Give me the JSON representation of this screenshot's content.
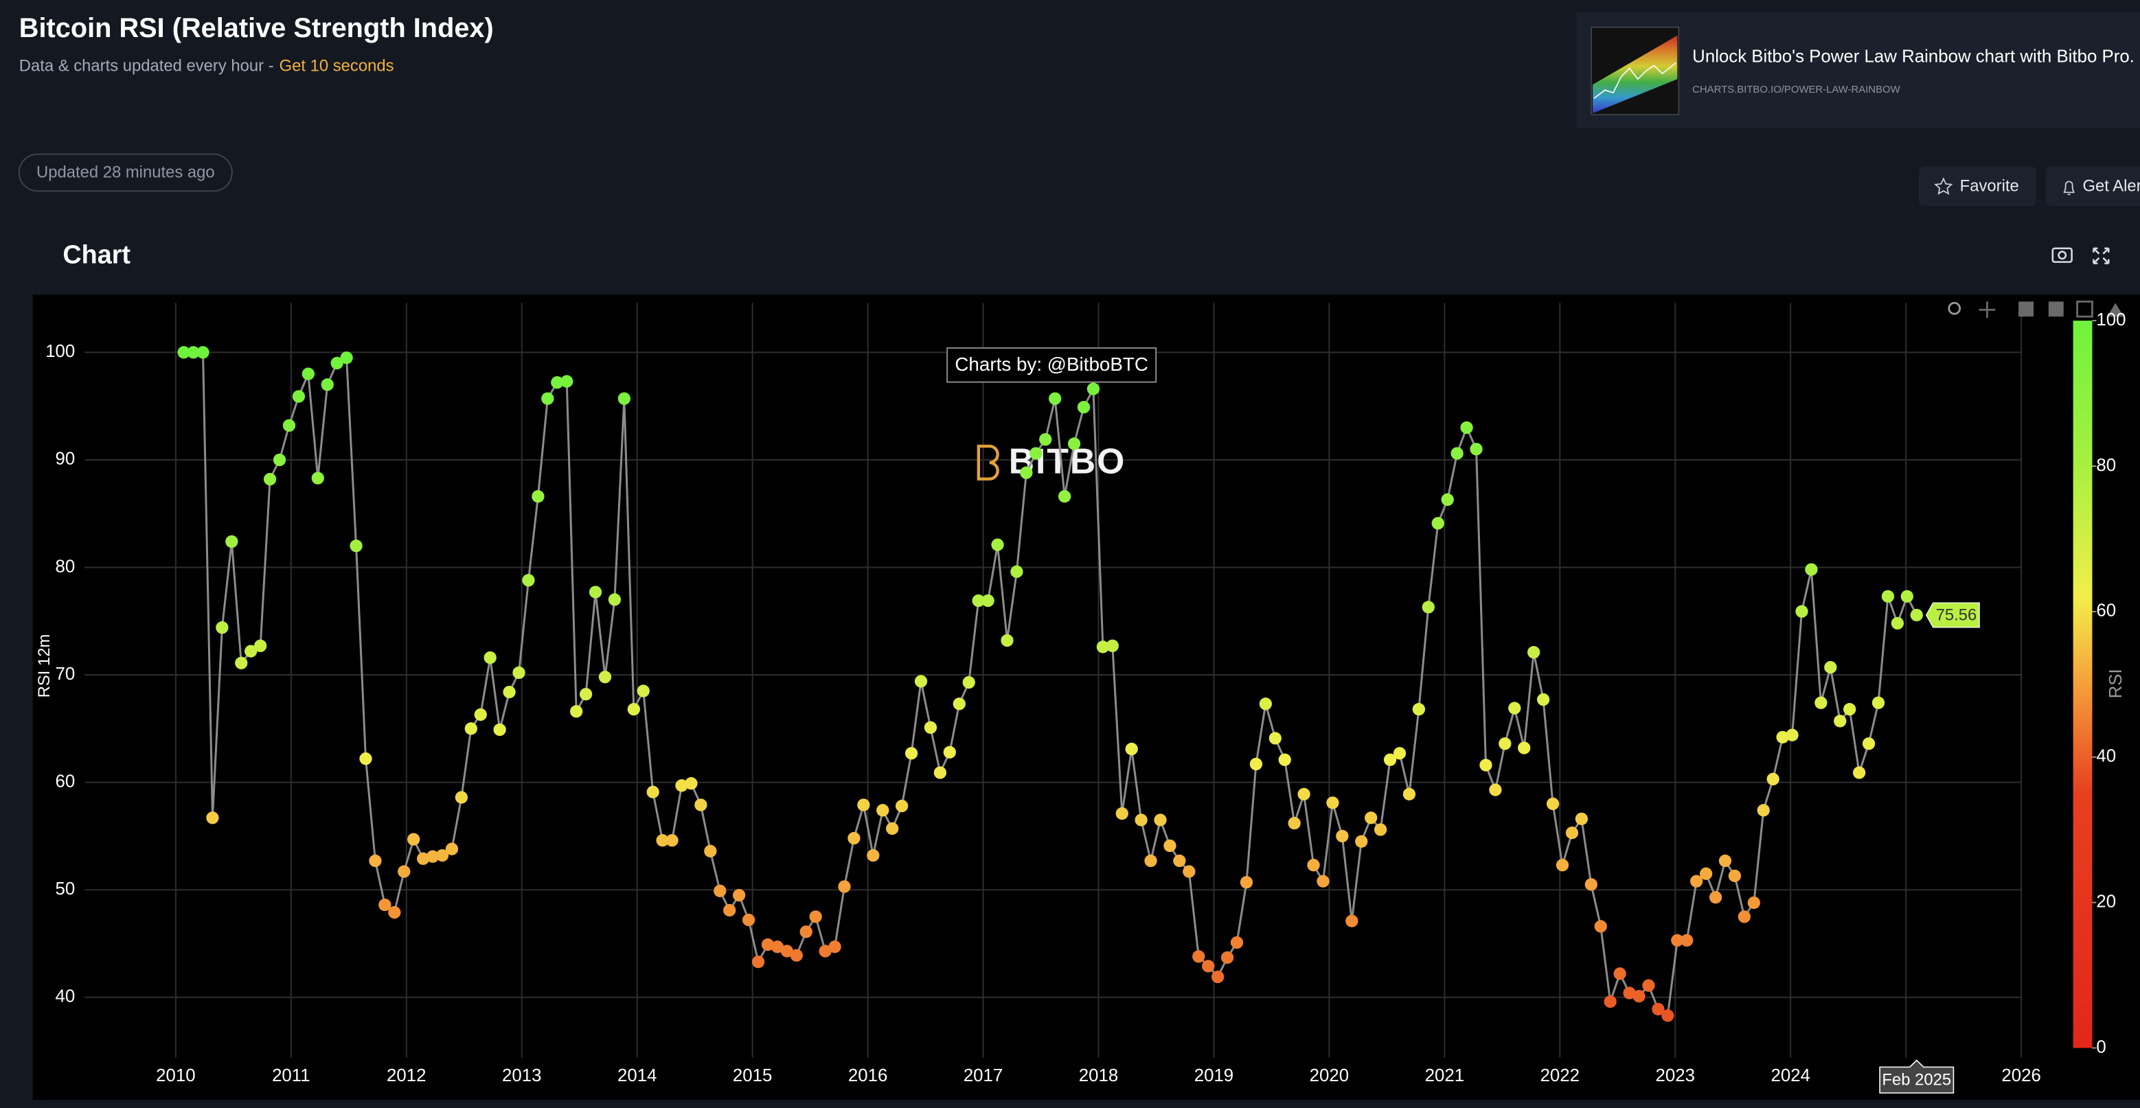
{
  "header": {
    "title": "Bitcoin RSI (Relative Strength Index)",
    "subtitle": "Data & charts updated every hour -",
    "subtitle_link": "Get 10 seconds"
  },
  "ad": {
    "title": "Unlock Bitbo's Power Law Rainbow chart with Bitbo Pro.",
    "url": "CHARTS.BITBO.IO/POWER-LAW-RAINBOW"
  },
  "status": "Updated 28 minutes ago",
  "buttons": [
    "Favorite",
    "Get Alerts"
  ],
  "panel_title": "Chart",
  "chart_data": {
    "type": "line",
    "markers": true,
    "y_label": "RSI 12m",
    "annotation": "Charts by: @BitboBTC",
    "watermark": "BITBO",
    "hover_x_label": "Feb 2025",
    "line_color": "#8c8c8c",
    "grid": true,
    "xlim": [
      2009.21,
      2026
    ],
    "xticks": [
      2010,
      2011,
      2012,
      2013,
      2014,
      2015,
      2016,
      2017,
      2018,
      2019,
      2020,
      2021,
      2022,
      2023,
      2024,
      2025,
      2026
    ],
    "ylim": [
      34.4,
      104.6
    ],
    "yticks": [
      40,
      50,
      60,
      70,
      80,
      90,
      100
    ],
    "colorbar": {
      "title": "RSI",
      "lim": [
        0,
        100
      ],
      "ticks": [
        0,
        20,
        40,
        60,
        80,
        100
      ],
      "colorscale": [
        [
          0,
          "#e3261b"
        ],
        [
          0.35,
          "#e6401f"
        ],
        [
          0.5,
          "#f5a03a"
        ],
        [
          0.62,
          "#f2ee4a"
        ],
        [
          0.8,
          "#a8f040"
        ],
        [
          1,
          "#6ff23c"
        ]
      ]
    },
    "x": [
      2010.07,
      2010.153,
      2010.236,
      2010.319,
      2010.402,
      2010.485,
      2010.568,
      2010.651,
      2010.734,
      2010.817,
      2010.9,
      2010.983,
      2011.066,
      2011.149,
      2011.232,
      2011.315,
      2011.398,
      2011.481,
      2011.564,
      2011.647,
      2011.73,
      2011.813,
      2011.896,
      2011.979,
      2012.062,
      2012.145,
      2012.228,
      2012.311,
      2012.394,
      2012.477,
      2012.56,
      2012.643,
      2012.726,
      2012.809,
      2012.892,
      2012.975,
      2013.058,
      2013.141,
      2013.224,
      2013.307,
      2013.39,
      2013.473,
      2013.556,
      2013.639,
      2013.722,
      2013.805,
      2013.888,
      2013.971,
      2014.054,
      2014.137,
      2014.22,
      2014.303,
      2014.386,
      2014.469,
      2014.552,
      2014.635,
      2014.718,
      2014.801,
      2014.884,
      2014.967,
      2015.05,
      2015.133,
      2015.216,
      2015.299,
      2015.382,
      2015.465,
      2015.548,
      2015.631,
      2015.714,
      2015.797,
      2015.88,
      2015.963,
      2016.046,
      2016.129,
      2016.212,
      2016.295,
      2016.378,
      2016.461,
      2016.544,
      2016.627,
      2016.71,
      2016.793,
      2016.876,
      2016.959,
      2017.042,
      2017.125,
      2017.208,
      2017.291,
      2017.374,
      2017.457,
      2017.54,
      2017.623,
      2017.706,
      2017.789,
      2017.872,
      2017.955,
      2018.038,
      2018.121,
      2018.204,
      2018.287,
      2018.37,
      2018.453,
      2018.536,
      2018.619,
      2018.702,
      2018.785,
      2018.868,
      2018.951,
      2019.034,
      2019.117,
      2019.2,
      2019.283,
      2019.366,
      2019.449,
      2019.532,
      2019.615,
      2019.698,
      2019.781,
      2019.864,
      2019.947,
      2020.03,
      2020.113,
      2020.196,
      2020.279,
      2020.362,
      2020.445,
      2020.528,
      2020.611,
      2020.694,
      2020.777,
      2020.86,
      2020.943,
      2021.026,
      2021.109,
      2021.192,
      2021.275,
      2021.358,
      2021.441,
      2021.524,
      2021.607,
      2021.69,
      2021.773,
      2021.856,
      2021.939,
      2022.022,
      2022.105,
      2022.188,
      2022.271,
      2022.354,
      2022.437,
      2022.52,
      2022.603,
      2022.686,
      2022.769,
      2022.852,
      2022.935,
      2023.018,
      2023.101,
      2023.184,
      2023.267,
      2023.35,
      2023.433,
      2023.516,
      2023.599,
      2023.682,
      2023.765,
      2023.848,
      2023.931,
      2024.014,
      2024.097,
      2024.18,
      2024.263,
      2024.346,
      2024.429,
      2024.512,
      2024.595,
      2024.678,
      2024.761,
      2024.844,
      2024.927,
      2025.01,
      2025.093
    ],
    "values": [
      100,
      100,
      100,
      56.7,
      74.4,
      82.4,
      71.1,
      72.2,
      72.7,
      88.2,
      90.0,
      93.2,
      95.9,
      98.0,
      88.3,
      97.0,
      99.0,
      99.5,
      82.0,
      62.2,
      52.7,
      48.6,
      47.9,
      51.7,
      54.7,
      52.9,
      53.1,
      53.2,
      53.8,
      58.6,
      65.0,
      66.3,
      71.6,
      64.9,
      68.4,
      70.2,
      78.8,
      86.6,
      95.7,
      97.2,
      97.3,
      66.6,
      68.2,
      77.7,
      69.8,
      77.0,
      95.7,
      66.8,
      68.5,
      59.1,
      54.6,
      54.6,
      59.7,
      59.9,
      57.9,
      53.6,
      49.9,
      48.1,
      49.5,
      47.2,
      43.3,
      44.9,
      44.7,
      44.3,
      43.9,
      46.1,
      47.5,
      44.3,
      44.7,
      50.3,
      54.8,
      57.9,
      53.2,
      57.4,
      55.7,
      57.8,
      62.7,
      69.4,
      65.1,
      60.9,
      62.8,
      67.3,
      69.3,
      76.9,
      76.9,
      82.1,
      73.2,
      79.6,
      88.8,
      90.6,
      91.9,
      95.7,
      86.6,
      91.5,
      94.9,
      96.6,
      72.6,
      72.7,
      57.1,
      63.1,
      56.5,
      52.7,
      56.5,
      54.1,
      52.7,
      51.7,
      43.8,
      42.9,
      41.9,
      43.7,
      45.1,
      50.7,
      61.7,
      67.3,
      64.1,
      62.1,
      56.2,
      58.9,
      52.3,
      50.8,
      58.1,
      55.0,
      47.1,
      54.5,
      56.7,
      55.6,
      62.1,
      62.7,
      58.9,
      66.8,
      76.3,
      84.1,
      86.3,
      90.6,
      93.0,
      91.0,
      61.6,
      59.3,
      63.6,
      66.9,
      63.2,
      72.1,
      67.7,
      58.0,
      52.3,
      55.3,
      56.6,
      50.5,
      46.6,
      39.6,
      42.2,
      40.4,
      40.1,
      41.1,
      38.9,
      38.3,
      45.3,
      45.3,
      50.8,
      51.5,
      49.3,
      52.7,
      51.3,
      47.5,
      48.8,
      57.4,
      60.3,
      64.2,
      64.4,
      75.9,
      79.8,
      67.4,
      70.7,
      65.7,
      66.8,
      60.9,
      63.6,
      67.4,
      77.3,
      74.8,
      77.3,
      75.56
    ]
  }
}
